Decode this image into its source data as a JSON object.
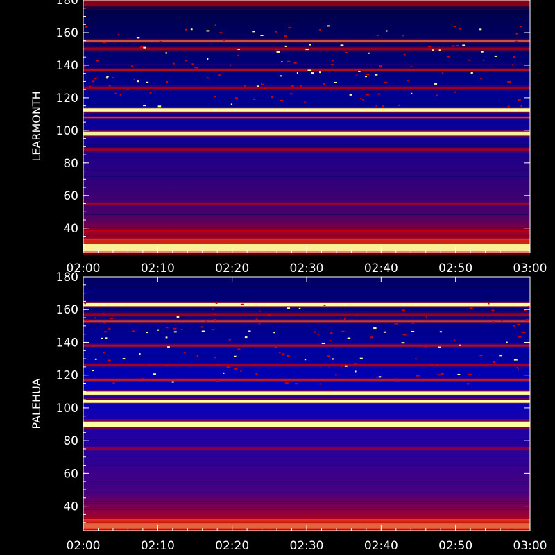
{
  "chart_data": [
    {
      "type": "heatmap",
      "ylabel": "LEARMONTH",
      "xlim": [
        "02:00",
        "03:00"
      ],
      "ylim": [
        25,
        180
      ],
      "x_ticks": [
        "02:00",
        "02:10",
        "02:20",
        "02:30",
        "02:40",
        "02:50",
        "03:00"
      ],
      "y_ticks": [
        40,
        60,
        80,
        100,
        120,
        140,
        160,
        180
      ],
      "colors": {
        "background": "#0000a0",
        "low": "#000040",
        "mid": "#d00000",
        "high": "#ffffa0"
      },
      "bands": [
        {
          "y": 178.5,
          "intensity": 0.3,
          "width": 3
        },
        {
          "y": 155,
          "intensity": 0.75,
          "width": 0.8
        },
        {
          "y": 150,
          "intensity": 0.4,
          "width": 1
        },
        {
          "y": 137,
          "intensity": 0.55,
          "width": 0.8
        },
        {
          "y": 126,
          "intensity": 0.45,
          "width": 1
        },
        {
          "y": 112.5,
          "intensity": 1.0,
          "width": 1.2
        },
        {
          "y": 108,
          "intensity": 0.7,
          "width": 0.6
        },
        {
          "y": 98,
          "intensity": 0.9,
          "width": 1.5
        },
        {
          "y": 88,
          "intensity": 0.35,
          "width": 1
        },
        {
          "y": 55,
          "intensity": 0.45,
          "width": 0.6
        },
        {
          "y": 38,
          "intensity": 0.45,
          "width": 1
        },
        {
          "y": 32,
          "intensity": 0.7,
          "width": 2
        },
        {
          "y": 28,
          "intensity": 0.9,
          "width": 3
        }
      ]
    },
    {
      "type": "heatmap",
      "ylabel": "PALEHUA",
      "xlim": [
        "02:00",
        "03:00"
      ],
      "ylim": [
        25,
        180
      ],
      "x_ticks": [
        "02:00",
        "02:10",
        "02:20",
        "02:30",
        "02:40",
        "02:50",
        "03:00"
      ],
      "y_ticks": [
        40,
        60,
        80,
        100,
        120,
        140,
        160,
        180
      ],
      "colors": {
        "background": "#0000c0",
        "low": "#000060",
        "mid": "#d00000",
        "high": "#ffffa0"
      },
      "bands": [
        {
          "y": 163,
          "intensity": 1.0,
          "width": 1.2
        },
        {
          "y": 157,
          "intensity": 0.4,
          "width": 1
        },
        {
          "y": 153,
          "intensity": 0.7,
          "width": 0.8
        },
        {
          "y": 138,
          "intensity": 0.55,
          "width": 0.8
        },
        {
          "y": 126,
          "intensity": 0.5,
          "width": 0.8
        },
        {
          "y": 117,
          "intensity": 0.6,
          "width": 0.8
        },
        {
          "y": 109,
          "intensity": 1.0,
          "width": 1.2
        },
        {
          "y": 104,
          "intensity": 1.0,
          "width": 1.2
        },
        {
          "y": 90,
          "intensity": 1.0,
          "width": 2
        },
        {
          "y": 75,
          "intensity": 0.2,
          "width": 1
        },
        {
          "y": 31,
          "intensity": 0.7,
          "width": 1.5
        },
        {
          "y": 28,
          "intensity": 0.8,
          "width": 2
        }
      ]
    }
  ]
}
